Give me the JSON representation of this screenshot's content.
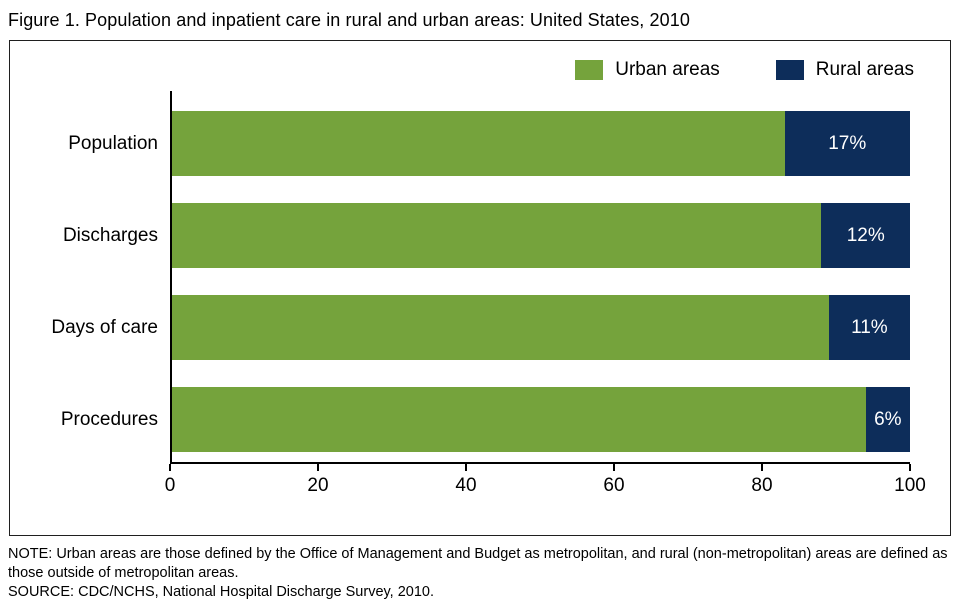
{
  "title": "Figure 1. Population and inpatient care in rural and urban areas: United States, 2010",
  "notes": {
    "note": "NOTE: Urban areas are those defined by the Office of Management and Budget as metropolitan, and rural (non-metropolitan) areas are defined as those outside of metropolitan areas.",
    "source": "SOURCE: CDC/NCHS, National Hospital Discharge Survey, 2010."
  },
  "colors": {
    "urban_green": "#75A33C",
    "rural_navy": "#0D2D5A",
    "axis_black": "#000000"
  },
  "chart_data": {
    "type": "bar",
    "orientation": "horizontal",
    "stacked": true,
    "title": "Figure 1. Population and inpatient care in rural and urban areas: United States, 2010",
    "categories": [
      "Population",
      "Discharges",
      "Days of care",
      "Procedures"
    ],
    "series": [
      {
        "name": "Urban areas",
        "color": "#75A33C",
        "values": [
          83,
          88,
          89,
          94
        ]
      },
      {
        "name": "Rural areas",
        "color": "#0D2D5A",
        "values": [
          17,
          12,
          11,
          6
        ],
        "labels": [
          "17%",
          "12%",
          "11%",
          "6%"
        ]
      }
    ],
    "xlabel": "",
    "ylabel": "",
    "xlim": [
      0,
      100
    ],
    "xticks": [
      "0",
      "20",
      "40",
      "60",
      "80",
      "100"
    ],
    "grid": false,
    "legend_position": "top-right"
  }
}
